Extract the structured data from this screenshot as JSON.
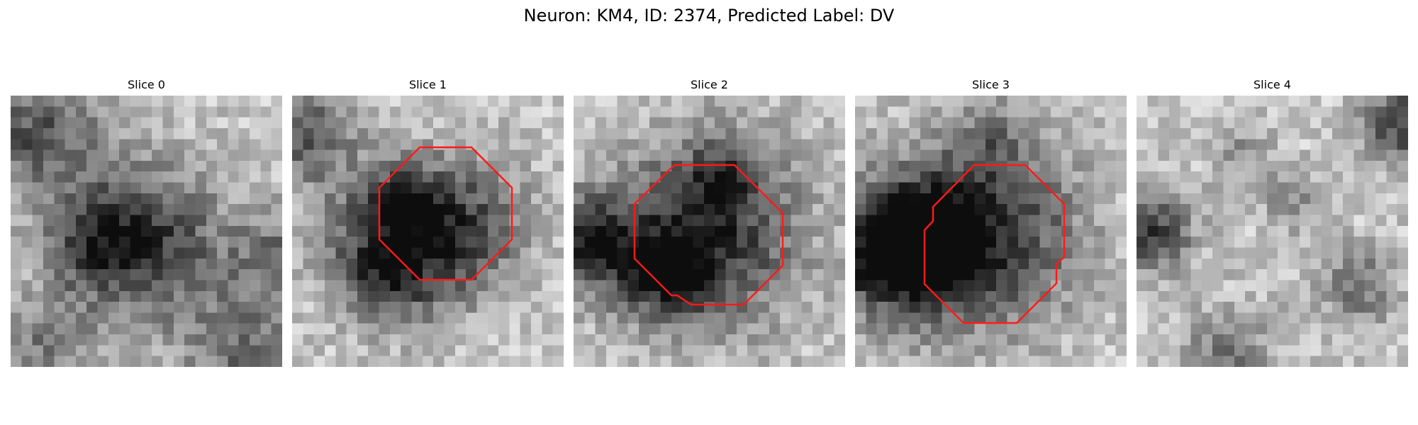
{
  "figure": {
    "title": "Neuron: KM4, ID: 2374, Predicted Label: DV",
    "contour_color": "#ff0000",
    "colormap": "grayscale",
    "slices": [
      {
        "title": "Slice 0",
        "has_contour": false
      },
      {
        "title": "Slice 1",
        "has_contour": true
      },
      {
        "title": "Slice 2",
        "has_contour": true
      },
      {
        "title": "Slice 3",
        "has_contour": true
      },
      {
        "title": "Slice 4",
        "has_contour": false
      }
    ]
  }
}
